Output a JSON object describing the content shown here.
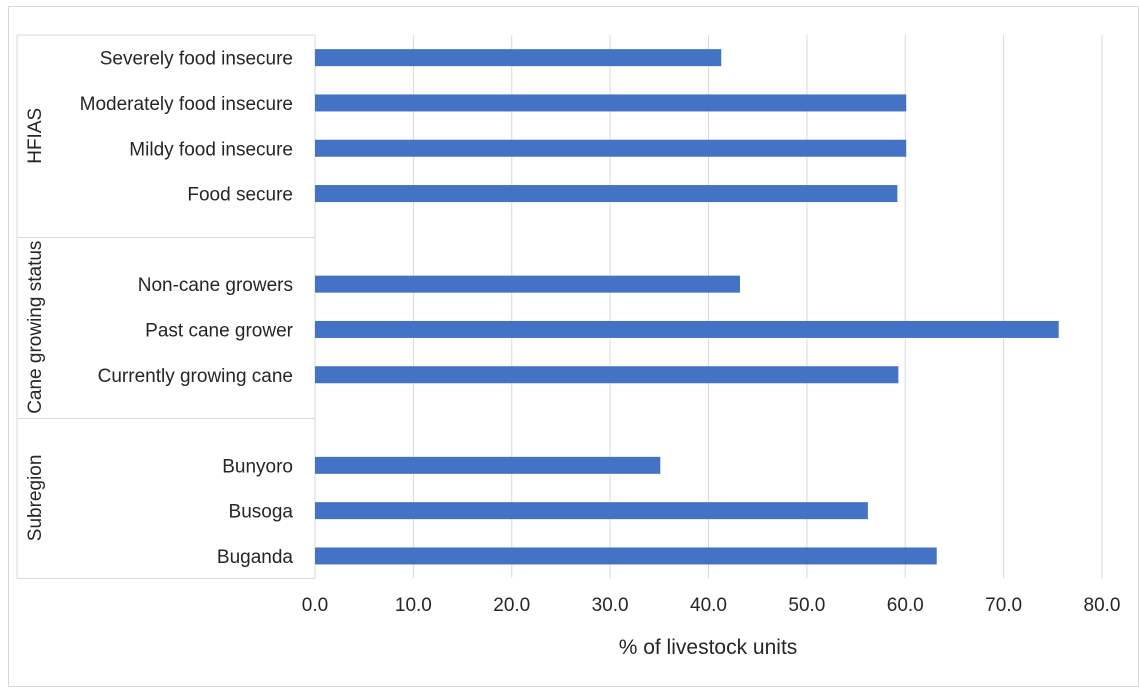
{
  "chart_data": {
    "type": "bar",
    "orientation": "horizontal",
    "xlabel": "% of livestock units",
    "xlim": [
      0,
      80
    ],
    "x_ticks": [
      "0.0",
      "10.0",
      "20.0",
      "30.0",
      "40.0",
      "50.0",
      "60.0",
      "70.0",
      "80.0"
    ],
    "grid": "vertical",
    "bar_color": "#4472C4",
    "groups": [
      {
        "name": "HFIAS",
        "categories": [
          "Severely food insecure",
          "Moderately food insecure",
          "Mildy food insecure",
          "Food secure"
        ],
        "values": [
          41.3,
          60.1,
          60.1,
          59.2
        ]
      },
      {
        "name": "Cane growing status",
        "categories": [
          "Non-cane growers",
          "Past cane grower",
          "Currently growing cane"
        ],
        "values": [
          43.2,
          75.6,
          59.3
        ]
      },
      {
        "name": "Subregion",
        "categories": [
          "Bunyoro",
          "Busoga",
          "Buganda"
        ],
        "values": [
          35.1,
          56.2,
          63.2
        ]
      }
    ]
  }
}
